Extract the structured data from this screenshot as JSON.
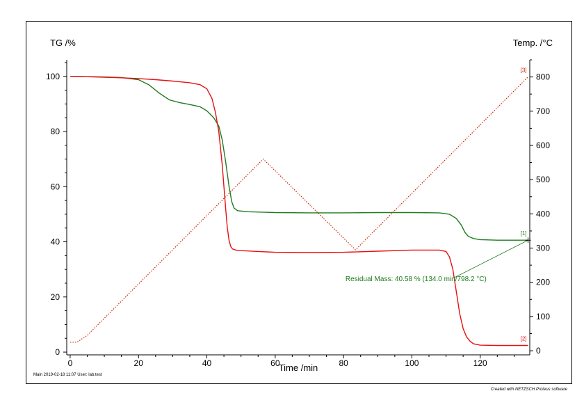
{
  "chart_data": {
    "type": "line",
    "left_axis_label": "TG /%",
    "right_axis_label": "Temp. /°C",
    "x_axis_label": "Time /min",
    "xlim": [
      -1,
      134.5
    ],
    "ylim_left": [
      -1,
      106
    ],
    "ylim_right": [
      -12,
      850
    ],
    "x_ticks": [
      0,
      20,
      40,
      60,
      80,
      100,
      120
    ],
    "y_left_ticks": [
      0,
      20,
      40,
      60,
      80,
      100
    ],
    "y_right_ticks": [
      0,
      100,
      200,
      300,
      400,
      500,
      600,
      700,
      800
    ],
    "grid": false,
    "series": [
      {
        "marker": "[1]",
        "axis": "left",
        "color": "#1e7b1e",
        "style": "solid",
        "x": [
          0,
          5,
          10,
          15,
          20,
          23,
          26,
          29,
          32,
          35,
          38,
          40,
          42,
          43.5,
          44.5,
          45.5,
          46.5,
          47.3,
          48,
          49,
          52,
          60,
          70,
          80,
          90,
          100,
          108,
          111,
          113,
          114.5,
          115.5,
          116.5,
          118,
          120,
          125,
          130,
          134
        ],
        "y": [
          100,
          99.9,
          99.8,
          99.6,
          98.8,
          97,
          94,
          91.5,
          90.5,
          89.8,
          89,
          87.5,
          85,
          82,
          77,
          69,
          60,
          54.5,
          52.2,
          51.3,
          50.9,
          50.6,
          50.5,
          50.5,
          50.6,
          50.6,
          50.5,
          50,
          48.5,
          46,
          43.5,
          42,
          41.2,
          40.8,
          40.6,
          40.6,
          40.58
        ]
      },
      {
        "marker": "[2]",
        "axis": "left",
        "color": "#e81010",
        "style": "solid",
        "x": [
          0,
          5,
          10,
          15,
          20,
          25,
          30,
          35,
          38,
          40,
          41.5,
          42.5,
          43.5,
          44.5,
          45,
          45.5,
          46,
          46.5,
          47,
          47.5,
          48.5,
          50,
          55,
          60,
          70,
          80,
          90,
          100,
          108,
          110,
          111,
          112,
          113,
          114,
          115,
          116,
          117,
          118,
          120,
          125,
          130,
          134
        ],
        "y": [
          100,
          99.9,
          99.7,
          99.5,
          99.2,
          98.8,
          98.3,
          97.7,
          97,
          95.5,
          92,
          87,
          80,
          68,
          60,
          52,
          45,
          40.5,
          38.3,
          37.4,
          37,
          36.8,
          36.5,
          36.2,
          36.1,
          36.2,
          36.6,
          37,
          37,
          36.5,
          34.5,
          30,
          22,
          14,
          8.5,
          5.5,
          4,
          3,
          2.5,
          2.4,
          2.4,
          2.4
        ]
      },
      {
        "marker": "[3]",
        "axis": "right",
        "color": "#cc2200",
        "style": "dotted",
        "x": [
          0,
          2,
          5,
          56.5,
          83.5,
          134
        ],
        "y": [
          25,
          25,
          45,
          560,
          295,
          800
        ]
      }
    ],
    "annotation": {
      "text": "Residual Mass: 40.58 % (134.0 min/798.2 °C)",
      "color": "#1e7b1e",
      "points_to_x": 134,
      "points_to_y": 40.58,
      "label_x": 89,
      "label_y": 26.5
    }
  },
  "footer": {
    "left": "Main   2019-02-18 11:07    User: lab.test",
    "right": "Created with NETZSCH Proteus software"
  }
}
